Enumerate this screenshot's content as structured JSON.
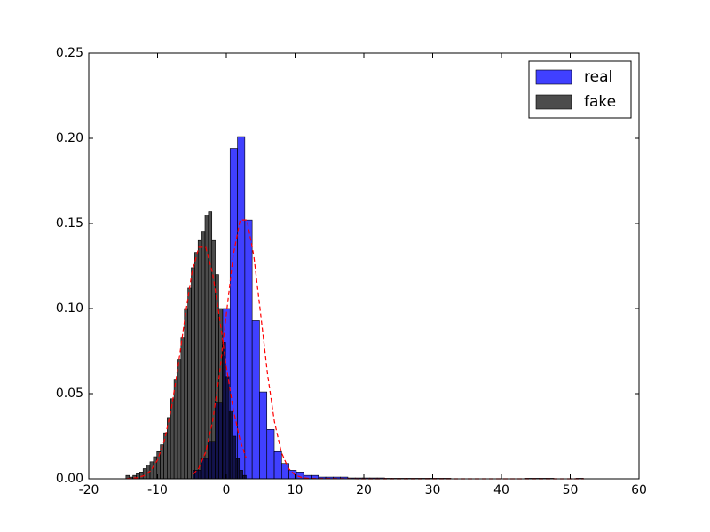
{
  "chart_data": {
    "type": "histogram",
    "xlim": [
      -20,
      60
    ],
    "xticks": [
      -20,
      -10,
      0,
      10,
      20,
      30,
      40,
      50,
      60
    ],
    "ylim": [
      0,
      0.25
    ],
    "yticks": [
      {
        "value": 0,
        "label": "0.00"
      },
      {
        "value": 0.05,
        "label": "0.05"
      },
      {
        "value": 0.1,
        "label": "0.10"
      },
      {
        "value": 0.15,
        "label": "0.15"
      },
      {
        "value": 0.2,
        "label": "0.20"
      },
      {
        "value": 0.25,
        "label": "0.25"
      }
    ],
    "legend": "upper right",
    "series": [
      {
        "name": "real",
        "color": "#0000ff",
        "alpha": 0.75,
        "bins": [
          -4.8,
          -3.73,
          -2.66,
          -1.59,
          -0.52,
          0.55,
          1.62,
          2.69,
          3.76,
          4.83,
          5.9,
          6.97,
          8.04,
          9.11,
          10.18,
          11.25,
          12.32,
          13.39,
          14.46,
          15.53,
          16.6,
          17.67,
          18.74,
          19.81,
          20.88,
          21.95,
          23.02,
          24.09,
          25.16,
          26.23,
          27.3,
          28.37,
          29.44,
          30.51,
          31.58,
          32.65,
          33.72,
          34.79,
          35.86,
          36.93,
          38,
          39.07,
          40.14,
          41.21,
          42.28,
          43.35,
          44.42,
          45.49,
          46.56,
          47.63,
          48.7,
          49.77,
          50.84,
          51.91
        ],
        "values": [
          0.005,
          0.012,
          0.022,
          0.045,
          0.1,
          0.194,
          0.201,
          0.152,
          0.093,
          0.051,
          0.029,
          0.016,
          0.009,
          0.005,
          0.004,
          0.002,
          0.002,
          0.001,
          0.001,
          0.001,
          0.001,
          0.0005,
          0.0005,
          0.0005,
          0.0005,
          0.0005,
          0.0003,
          0.0003,
          0.0003,
          0.0003,
          0.0003,
          0.0003,
          0.0003,
          0.0003,
          0.0003,
          0,
          0,
          0,
          0,
          0,
          0,
          0,
          0,
          0,
          0,
          0.0003,
          0.0003,
          0.0003,
          0.0003,
          0,
          0,
          0,
          0.0003
        ]
      },
      {
        "name": "fake",
        "color": "#000000",
        "alpha": 0.7,
        "bins": [
          -14.6,
          -14.1,
          -13.6,
          -13.1,
          -12.6,
          -12.1,
          -11.6,
          -11.1,
          -10.6,
          -10.1,
          -9.6,
          -9.1,
          -8.6,
          -8.1,
          -7.6,
          -7.1,
          -6.6,
          -6.1,
          -5.6,
          -5.1,
          -4.6,
          -4.1,
          -3.6,
          -3.1,
          -2.6,
          -2.1,
          -1.6,
          -1.1,
          -0.6,
          -0.1,
          0.4,
          0.9,
          1.4,
          1.9,
          2.4,
          2.9
        ],
        "values": [
          0.002,
          0.001,
          0.002,
          0.003,
          0.004,
          0.006,
          0.008,
          0.01,
          0.013,
          0.016,
          0.02,
          0.027,
          0.036,
          0.047,
          0.058,
          0.07,
          0.083,
          0.1,
          0.112,
          0.124,
          0.133,
          0.14,
          0.145,
          0.155,
          0.157,
          0.14,
          0.12,
          0.1,
          0.08,
          0.06,
          0.04,
          0.025,
          0.012,
          0.005,
          0.002
        ]
      }
    ],
    "fits": [
      {
        "color": "#ff0000",
        "x": [
          -4.8,
          -4,
          -3,
          -2,
          -1,
          0,
          1,
          2,
          3,
          4,
          5,
          6,
          7,
          8,
          9,
          10,
          11,
          12,
          20,
          30,
          40,
          52
        ],
        "values": [
          0.0027,
          0.0063,
          0.0157,
          0.0335,
          0.0613,
          0.0966,
          0.131,
          0.152,
          0.152,
          0.131,
          0.0966,
          0.0613,
          0.0335,
          0.0157,
          0.0063,
          0.0022,
          0.0007,
          0.0002,
          0,
          0,
          0,
          0
        ]
      },
      {
        "color": "#ff0000",
        "x": [
          -14.5,
          -13,
          -12,
          -11,
          -10,
          -9,
          -8,
          -7,
          -6,
          -5,
          -4,
          -3,
          -2,
          -1,
          0,
          1,
          2,
          2.9
        ],
        "values": [
          0.0001,
          0.0006,
          0.0018,
          0.0047,
          0.011,
          0.0226,
          0.041,
          0.0663,
          0.095,
          0.121,
          0.136,
          0.136,
          0.121,
          0.095,
          0.066,
          0.041,
          0.0226,
          0.012
        ]
      }
    ]
  }
}
